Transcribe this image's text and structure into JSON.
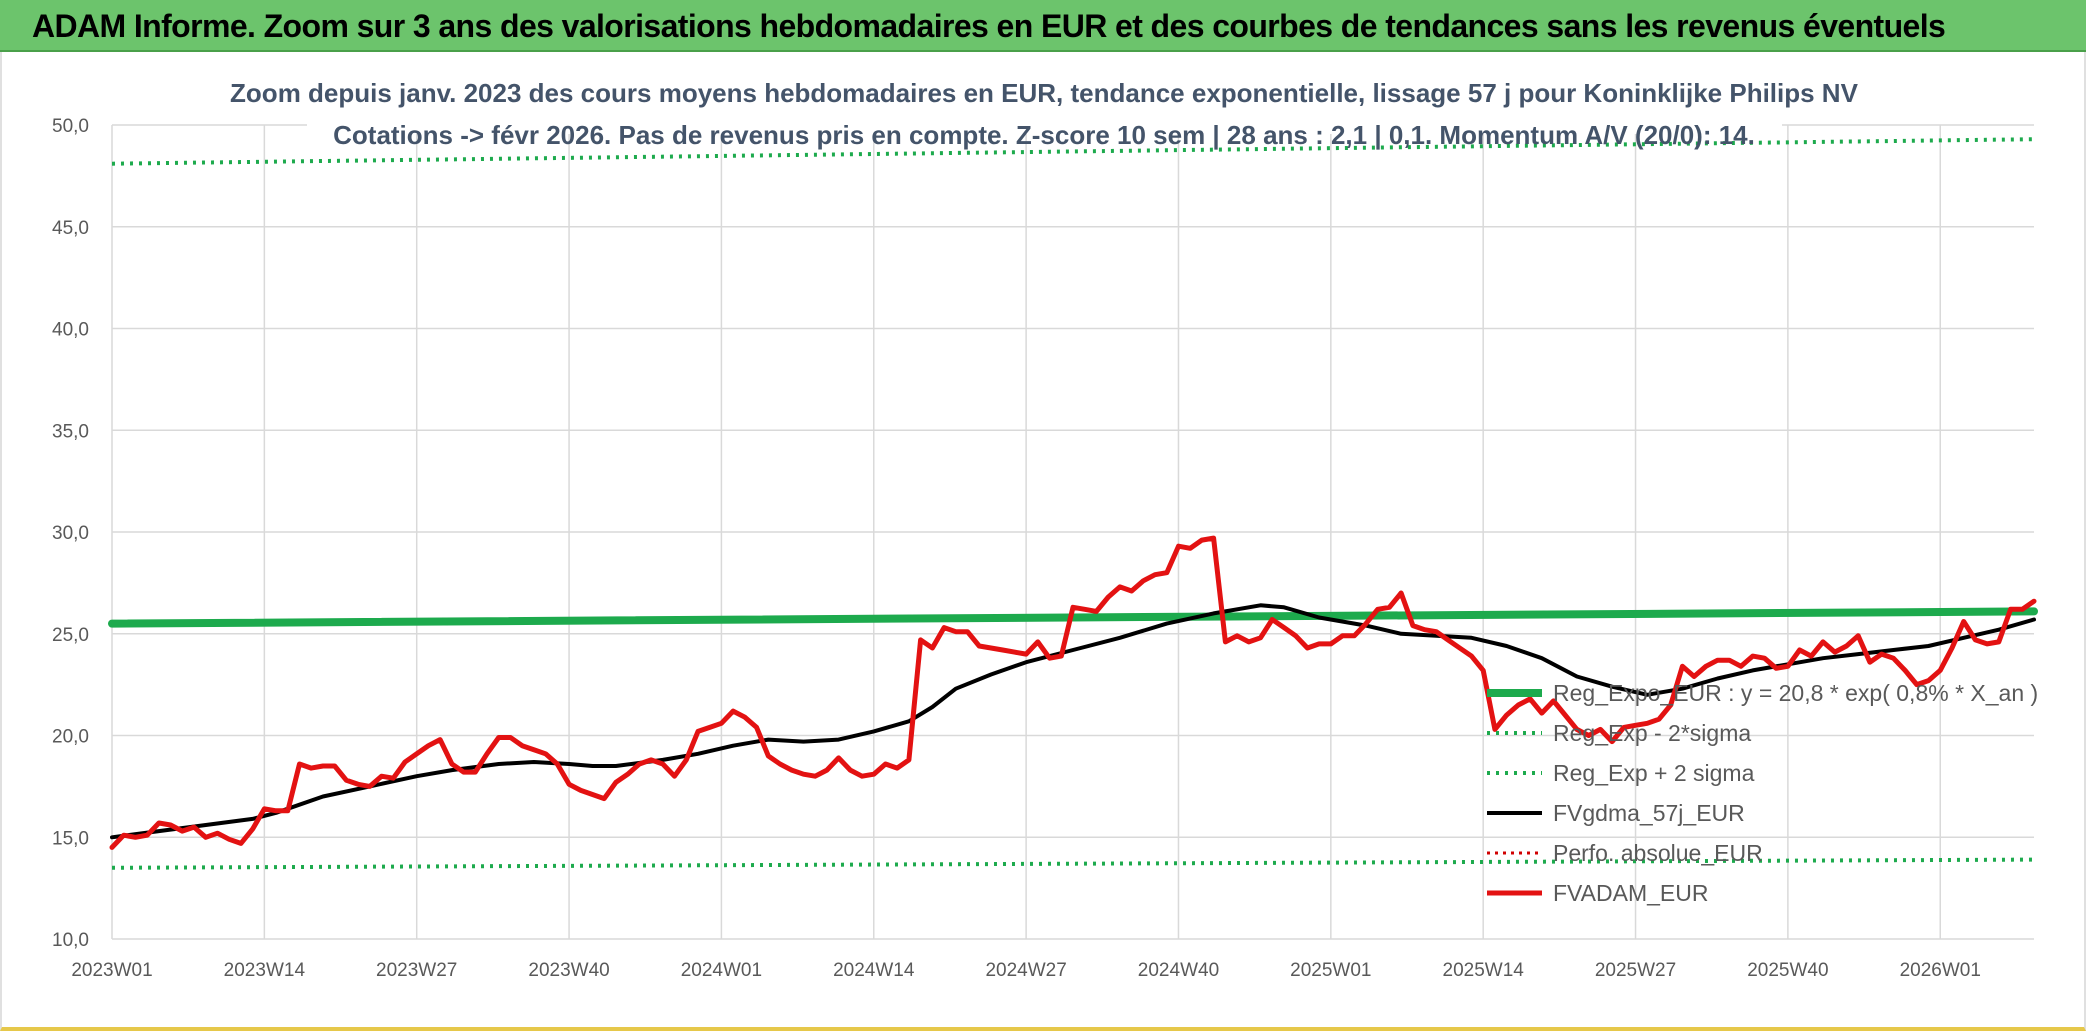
{
  "header": {
    "title": "ADAM Informe. Zoom sur 3 ans des valorisations hebdomadaires en EUR et des courbes de tendances sans les revenus éventuels"
  },
  "chart_data": {
    "type": "line",
    "title": "Zoom depuis janv. 2023 des cours moyens hebdomadaires en EUR, tendance exponentielle, lissage 57 j pour Koninklijke Philips NV",
    "subtitle": "Cotations -> févr 2026. Pas de revenus pris en compte. Z-score 10 sem | 28 ans : 2,1 | 0,1. Momentum A/V (20/0): 14.",
    "xlabel": "",
    "ylabel": "",
    "ylim": [
      10,
      50
    ],
    "yticks": [
      "10,0",
      "15,0",
      "20,0",
      "25,0",
      "30,0",
      "35,0",
      "40,0",
      "45,0",
      "50,0"
    ],
    "xticks": [
      "2023W01",
      "2023W14",
      "2023W27",
      "2023W40",
      "2024W01",
      "2024W14",
      "2024W27",
      "2024W40",
      "2025W01",
      "2025W14",
      "2025W27",
      "2025W40",
      "2026W01"
    ],
    "x_weeks": 165,
    "grid": true,
    "legend_position": "bottom-right",
    "colors": {
      "green": "#1daa4d",
      "black": "#000000",
      "red": "#e31212",
      "dotred": "#d00000",
      "grid": "#d9d9d9"
    },
    "series": [
      {
        "name": "Reg_Expo_EUR : y = 20,8 * exp( 0,8% *  X_an )",
        "style": "thick-green",
        "points": [
          [
            0,
            25.5
          ],
          [
            164,
            26.1
          ]
        ]
      },
      {
        "name": "Reg_Exp - 2*sigma",
        "style": "dotted-green",
        "points": [
          [
            0,
            13.5
          ],
          [
            164,
            13.9
          ]
        ]
      },
      {
        "name": "Reg_Exp + 2 sigma",
        "style": "dotted-green",
        "points": [
          [
            0,
            48.1
          ],
          [
            164,
            49.3
          ]
        ]
      },
      {
        "name": "FVgdma_57j_EUR",
        "style": "black",
        "points": [
          [
            0,
            15.0
          ],
          [
            4,
            15.3
          ],
          [
            8,
            15.6
          ],
          [
            12,
            15.9
          ],
          [
            14,
            16.2
          ],
          [
            18,
            17.0
          ],
          [
            22,
            17.5
          ],
          [
            26,
            18.0
          ],
          [
            29,
            18.3
          ],
          [
            33,
            18.6
          ],
          [
            36,
            18.7
          ],
          [
            39,
            18.6
          ],
          [
            41,
            18.5
          ],
          [
            43,
            18.5
          ],
          [
            47,
            18.8
          ],
          [
            50,
            19.1
          ],
          [
            53,
            19.5
          ],
          [
            56,
            19.8
          ],
          [
            59,
            19.7
          ],
          [
            62,
            19.8
          ],
          [
            65,
            20.2
          ],
          [
            68,
            20.7
          ],
          [
            70,
            21.4
          ],
          [
            72,
            22.3
          ],
          [
            75,
            23.0
          ],
          [
            78,
            23.6
          ],
          [
            82,
            24.2
          ],
          [
            86,
            24.8
          ],
          [
            90,
            25.5
          ],
          [
            94,
            26.0
          ],
          [
            98,
            26.4
          ],
          [
            100,
            26.3
          ],
          [
            103,
            25.8
          ],
          [
            107,
            25.4
          ],
          [
            110,
            25.0
          ],
          [
            113,
            24.9
          ],
          [
            116,
            24.8
          ],
          [
            119,
            24.4
          ],
          [
            122,
            23.8
          ],
          [
            125,
            22.9
          ],
          [
            128,
            22.4
          ],
          [
            131,
            22.0
          ],
          [
            134,
            22.3
          ],
          [
            137,
            22.8
          ],
          [
            140,
            23.2
          ],
          [
            143,
            23.5
          ],
          [
            146,
            23.8
          ],
          [
            149,
            24.0
          ],
          [
            152,
            24.2
          ],
          [
            155,
            24.4
          ],
          [
            158,
            24.8
          ],
          [
            161,
            25.2
          ],
          [
            164,
            25.7
          ]
        ]
      },
      {
        "name": "Perfo. absolue_EUR",
        "style": "dotted-red",
        "points": []
      },
      {
        "name": "FVADAM_EUR",
        "style": "red",
        "points": [
          [
            0,
            14.5
          ],
          [
            1,
            15.1
          ],
          [
            2,
            15.0
          ],
          [
            3,
            15.1
          ],
          [
            4,
            15.7
          ],
          [
            5,
            15.6
          ],
          [
            6,
            15.3
          ],
          [
            7,
            15.5
          ],
          [
            8,
            15.0
          ],
          [
            9,
            15.2
          ],
          [
            10,
            14.9
          ],
          [
            11,
            14.7
          ],
          [
            12,
            15.4
          ],
          [
            13,
            16.4
          ],
          [
            14,
            16.3
          ],
          [
            15,
            16.3
          ],
          [
            16,
            18.6
          ],
          [
            17,
            18.4
          ],
          [
            18,
            18.5
          ],
          [
            19,
            18.5
          ],
          [
            20,
            17.8
          ],
          [
            21,
            17.6
          ],
          [
            22,
            17.5
          ],
          [
            23,
            18.0
          ],
          [
            24,
            17.9
          ],
          [
            25,
            18.7
          ],
          [
            26,
            19.1
          ],
          [
            27,
            19.5
          ],
          [
            28,
            19.8
          ],
          [
            29,
            18.6
          ],
          [
            30,
            18.2
          ],
          [
            31,
            18.2
          ],
          [
            32,
            19.1
          ],
          [
            33,
            19.9
          ],
          [
            34,
            19.9
          ],
          [
            35,
            19.5
          ],
          [
            36,
            19.3
          ],
          [
            37,
            19.1
          ],
          [
            38,
            18.6
          ],
          [
            39,
            17.6
          ],
          [
            40,
            17.3
          ],
          [
            41,
            17.1
          ],
          [
            42,
            16.9
          ],
          [
            43,
            17.7
          ],
          [
            44,
            18.1
          ],
          [
            45,
            18.6
          ],
          [
            46,
            18.8
          ],
          [
            47,
            18.6
          ],
          [
            48,
            18.0
          ],
          [
            49,
            18.8
          ],
          [
            50,
            20.2
          ],
          [
            51,
            20.4
          ],
          [
            52,
            20.6
          ],
          [
            53,
            21.2
          ],
          [
            54,
            20.9
          ],
          [
            55,
            20.4
          ],
          [
            56,
            19.0
          ],
          [
            57,
            18.6
          ],
          [
            58,
            18.3
          ],
          [
            59,
            18.1
          ],
          [
            60,
            18.0
          ],
          [
            61,
            18.3
          ],
          [
            62,
            18.9
          ],
          [
            63,
            18.3
          ],
          [
            64,
            18.0
          ],
          [
            65,
            18.1
          ],
          [
            66,
            18.6
          ],
          [
            67,
            18.4
          ],
          [
            68,
            18.8
          ],
          [
            69,
            24.7
          ],
          [
            70,
            24.3
          ],
          [
            71,
            25.3
          ],
          [
            72,
            25.1
          ],
          [
            73,
            25.1
          ],
          [
            74,
            24.4
          ],
          [
            75,
            24.3
          ],
          [
            76,
            24.2
          ],
          [
            77,
            24.1
          ],
          [
            78,
            24.0
          ],
          [
            79,
            24.6
          ],
          [
            80,
            23.8
          ],
          [
            81,
            23.9
          ],
          [
            82,
            26.3
          ],
          [
            83,
            26.2
          ],
          [
            84,
            26.1
          ],
          [
            85,
            26.8
          ],
          [
            86,
            27.3
          ],
          [
            87,
            27.1
          ],
          [
            88,
            27.6
          ],
          [
            89,
            27.9
          ],
          [
            90,
            28.0
          ],
          [
            91,
            29.3
          ],
          [
            92,
            29.2
          ],
          [
            93,
            29.6
          ],
          [
            94,
            29.7
          ],
          [
            95,
            24.6
          ],
          [
            96,
            24.9
          ],
          [
            97,
            24.6
          ],
          [
            98,
            24.8
          ],
          [
            99,
            25.7
          ],
          [
            100,
            25.3
          ],
          [
            101,
            24.9
          ],
          [
            102,
            24.3
          ],
          [
            103,
            24.5
          ],
          [
            104,
            24.5
          ],
          [
            105,
            24.9
          ],
          [
            106,
            24.9
          ],
          [
            107,
            25.5
          ],
          [
            108,
            26.2
          ],
          [
            109,
            26.3
          ],
          [
            110,
            27.0
          ],
          [
            111,
            25.4
          ],
          [
            112,
            25.2
          ],
          [
            113,
            25.1
          ],
          [
            114,
            24.7
          ],
          [
            115,
            24.3
          ],
          [
            116,
            23.9
          ],
          [
            117,
            23.2
          ],
          [
            118,
            20.3
          ],
          [
            119,
            21.0
          ],
          [
            120,
            21.5
          ],
          [
            121,
            21.8
          ],
          [
            122,
            21.1
          ],
          [
            123,
            21.7
          ],
          [
            124,
            21.0
          ],
          [
            125,
            20.3
          ],
          [
            126,
            20.0
          ],
          [
            127,
            20.3
          ],
          [
            128,
            19.7
          ],
          [
            129,
            20.4
          ],
          [
            130,
            20.5
          ],
          [
            131,
            20.6
          ],
          [
            132,
            20.8
          ],
          [
            133,
            21.5
          ],
          [
            134,
            23.4
          ],
          [
            135,
            22.9
          ],
          [
            136,
            23.4
          ],
          [
            137,
            23.7
          ],
          [
            138,
            23.7
          ],
          [
            139,
            23.4
          ],
          [
            140,
            23.9
          ],
          [
            141,
            23.8
          ],
          [
            142,
            23.3
          ],
          [
            143,
            23.4
          ],
          [
            144,
            24.2
          ],
          [
            145,
            23.9
          ],
          [
            146,
            24.6
          ],
          [
            147,
            24.1
          ],
          [
            148,
            24.4
          ],
          [
            149,
            24.9
          ],
          [
            150,
            23.6
          ],
          [
            151,
            24.0
          ],
          [
            152,
            23.8
          ],
          [
            153,
            23.2
          ],
          [
            154,
            22.5
          ],
          [
            155,
            22.7
          ],
          [
            156,
            23.2
          ],
          [
            157,
            24.3
          ],
          [
            158,
            25.6
          ],
          [
            159,
            24.7
          ],
          [
            160,
            24.5
          ],
          [
            161,
            24.6
          ],
          [
            162,
            26.2
          ],
          [
            163,
            26.2
          ],
          [
            164,
            26.6
          ]
        ]
      }
    ]
  }
}
